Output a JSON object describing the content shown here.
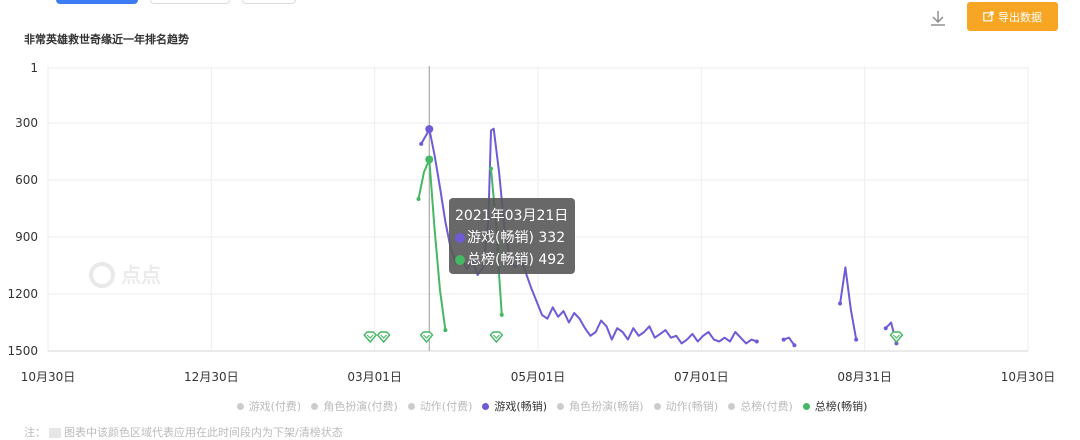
{
  "header": {
    "title": "非常英雄救世奇缘近一年排名趋势",
    "export_label": "导出数据",
    "download_icon": "download-icon",
    "export_icon": "external-link-icon"
  },
  "watermark": {
    "text": "点点",
    "icon": "diandian-logo"
  },
  "tooltip": {
    "date": "2021年03月21日",
    "rows": [
      {
        "label": "游戏(畅销)",
        "value": "332",
        "color": "#6f5ad8"
      },
      {
        "label": "总榜(畅销)",
        "value": "492",
        "color": "#44b864"
      }
    ]
  },
  "legend": [
    {
      "label": "游戏(付费)",
      "active": false
    },
    {
      "label": "角色扮演(付费)",
      "active": false
    },
    {
      "label": "动作(付费)",
      "active": false
    },
    {
      "label": "游戏(畅销)",
      "active": true,
      "color": "#6f5ad8"
    },
    {
      "label": "角色扮演(畅销)",
      "active": false
    },
    {
      "label": "动作(畅销)",
      "active": false
    },
    {
      "label": "总榜(付费)",
      "active": false
    },
    {
      "label": "总榜(畅销)",
      "active": true,
      "color": "#44b864"
    }
  ],
  "note": {
    "prefix": "注：",
    "text": "图表中该颜色区域代表应用在此时间段内为下架/清榜状态"
  },
  "chart_data": {
    "type": "line",
    "title": "非常英雄救世奇缘近一年排名趋势",
    "y_axis": {
      "reversed": true,
      "ticks": [
        1,
        300,
        600,
        900,
        1200,
        1500
      ],
      "ylim": [
        1,
        1500
      ]
    },
    "x_axis": {
      "ticks": [
        "10月30日",
        "12月30日",
        "03月01日",
        "05月01日",
        "07月01日",
        "08月31日",
        "10月30日"
      ],
      "range": [
        "2020-10-30",
        "2021-10-30"
      ]
    },
    "grid": true,
    "legend_position": "bottom",
    "series": [
      {
        "name": "游戏(畅销)",
        "color": "#6f5ad8",
        "segments": [
          [
            [
              "2021-03-18",
              410
            ],
            [
              "2021-03-20",
              360
            ],
            [
              "2021-03-21",
              332
            ],
            [
              "2021-03-23",
              470
            ],
            [
              "2021-03-25",
              640
            ],
            [
              "2021-03-27",
              820
            ],
            [
              "2021-03-29",
              960
            ],
            [
              "2021-03-31",
              1040
            ],
            [
              "2021-04-02",
              1000
            ],
            [
              "2021-04-04",
              1070
            ],
            [
              "2021-04-06",
              1020
            ],
            [
              "2021-04-08",
              1100
            ],
            [
              "2021-04-10",
              1060
            ],
            [
              "2021-04-12",
              820
            ],
            [
              "2021-04-13",
              340
            ],
            [
              "2021-04-14",
              330
            ],
            [
              "2021-04-16",
              560
            ],
            [
              "2021-04-18",
              850
            ],
            [
              "2021-04-20",
              1010
            ],
            [
              "2021-04-22",
              1060
            ],
            [
              "2021-04-24",
              1010
            ],
            [
              "2021-04-26",
              1090
            ],
            [
              "2021-04-28",
              1170
            ],
            [
              "2021-04-30",
              1240
            ],
            [
              "2021-05-02",
              1310
            ],
            [
              "2021-05-04",
              1330
            ],
            [
              "2021-05-06",
              1270
            ],
            [
              "2021-05-08",
              1320
            ],
            [
              "2021-05-10",
              1290
            ],
            [
              "2021-05-12",
              1350
            ],
            [
              "2021-05-14",
              1300
            ],
            [
              "2021-05-16",
              1330
            ],
            [
              "2021-05-18",
              1380
            ],
            [
              "2021-05-20",
              1420
            ],
            [
              "2021-05-22",
              1400
            ],
            [
              "2021-05-24",
              1340
            ],
            [
              "2021-05-26",
              1370
            ],
            [
              "2021-05-28",
              1440
            ],
            [
              "2021-05-30",
              1380
            ],
            [
              "2021-06-01",
              1400
            ],
            [
              "2021-06-03",
              1440
            ],
            [
              "2021-06-05",
              1380
            ],
            [
              "2021-06-07",
              1420
            ],
            [
              "2021-06-09",
              1400
            ],
            [
              "2021-06-11",
              1370
            ],
            [
              "2021-06-13",
              1430
            ],
            [
              "2021-06-15",
              1410
            ],
            [
              "2021-06-17",
              1390
            ],
            [
              "2021-06-19",
              1430
            ],
            [
              "2021-06-21",
              1420
            ],
            [
              "2021-06-23",
              1460
            ],
            [
              "2021-06-25",
              1440
            ],
            [
              "2021-06-27",
              1410
            ],
            [
              "2021-06-29",
              1450
            ],
            [
              "2021-07-01",
              1420
            ],
            [
              "2021-07-03",
              1400
            ],
            [
              "2021-07-05",
              1440
            ],
            [
              "2021-07-07",
              1450
            ],
            [
              "2021-07-09",
              1430
            ],
            [
              "2021-07-11",
              1450
            ],
            [
              "2021-07-13",
              1400
            ],
            [
              "2021-07-15",
              1430
            ],
            [
              "2021-07-17",
              1460
            ],
            [
              "2021-07-19",
              1440
            ],
            [
              "2021-07-21",
              1450
            ]
          ],
          [
            [
              "2021-07-31",
              1440
            ],
            [
              "2021-08-02",
              1430
            ],
            [
              "2021-08-04",
              1470
            ]
          ],
          [
            [
              "2021-08-21",
              1250
            ],
            [
              "2021-08-23",
              1060
            ],
            [
              "2021-08-25",
              1280
            ],
            [
              "2021-08-27",
              1440
            ]
          ],
          [
            [
              "2021-09-07",
              1380
            ],
            [
              "2021-09-09",
              1350
            ],
            [
              "2021-09-11",
              1460
            ]
          ]
        ]
      },
      {
        "name": "总榜(畅销)",
        "color": "#44b864",
        "segments": [
          [
            [
              "2021-03-17",
              700
            ],
            [
              "2021-03-19",
              560
            ],
            [
              "2021-03-21",
              492
            ],
            [
              "2021-03-23",
              860
            ],
            [
              "2021-03-25",
              1180
            ],
            [
              "2021-03-27",
              1390
            ]
          ],
          [
            [
              "2021-04-13",
              540
            ],
            [
              "2021-04-15",
              850
            ],
            [
              "2021-04-16",
              1100
            ],
            [
              "2021-04-17",
              1310
            ]
          ]
        ],
        "markers": [
          "2021-02-27",
          "2021-03-04",
          "2021-03-20",
          "2021-04-15",
          "2021-09-11"
        ]
      }
    ],
    "crosshair_date": "2021-03-21"
  }
}
